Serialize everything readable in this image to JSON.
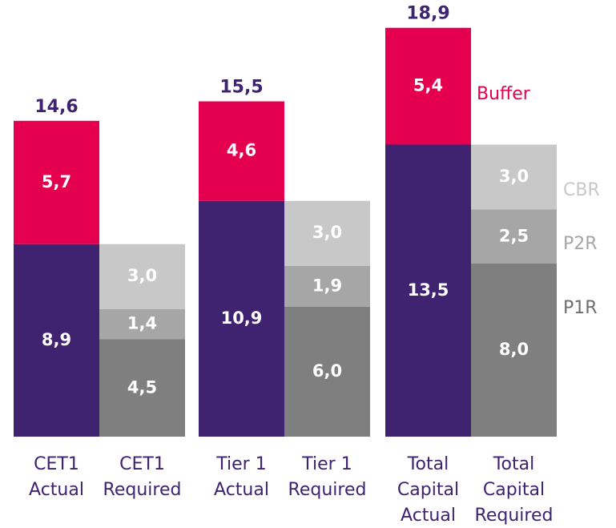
{
  "chart_data": {
    "type": "stacked-bar",
    "categories": [
      [
        "CET1",
        "Actual"
      ],
      [
        "CET1",
        "Required"
      ],
      [
        "Tier 1",
        "Actual"
      ],
      [
        "Tier 1",
        "Required"
      ],
      [
        "Total",
        "Capital",
        "Actual"
      ],
      [
        "Total",
        "Capital",
        "Required"
      ]
    ],
    "series": [
      {
        "color": "#3f2270",
        "values": [
          8.9,
          null,
          10.9,
          null,
          13.5,
          null
        ],
        "value_labels": [
          "8,9",
          null,
          "10,9",
          null,
          "13,5",
          null
        ]
      },
      {
        "name": "Buffer",
        "color": "#e5004f",
        "values": [
          5.7,
          null,
          4.6,
          null,
          5.4,
          null
        ],
        "value_labels": [
          "5,7",
          null,
          "4,6",
          null,
          "5,4",
          null
        ]
      },
      {
        "name": "P1R",
        "color": "#7f7f7f",
        "values": [
          null,
          4.5,
          null,
          6.0,
          null,
          8.0
        ],
        "value_labels": [
          null,
          "4,5",
          null,
          "6,0",
          null,
          "8,0"
        ]
      },
      {
        "name": "P2R",
        "color": "#a6a6a6",
        "values": [
          null,
          1.4,
          null,
          1.9,
          null,
          2.5
        ],
        "value_labels": [
          null,
          "1,4",
          null,
          "1,9",
          null,
          "2,5"
        ]
      },
      {
        "name": "CBR",
        "color": "#c8c8c8",
        "values": [
          null,
          3.0,
          null,
          3.0,
          null,
          3.0
        ],
        "value_labels": [
          null,
          "3,0",
          null,
          "3,0",
          null,
          "3,0"
        ]
      }
    ],
    "totals": [
      14.6,
      null,
      15.5,
      null,
      18.9,
      null
    ],
    "total_labels": [
      "14,6",
      null,
      "15,5",
      null,
      "18,9",
      null
    ]
  }
}
